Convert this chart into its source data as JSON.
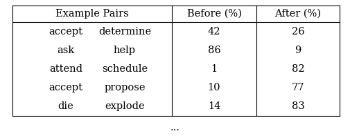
{
  "col1": [
    "accept",
    "ask",
    "attend",
    "accept",
    "die"
  ],
  "col2": [
    "determine",
    "help",
    "schedule",
    "propose",
    "explode"
  ],
  "before": [
    "42",
    "86",
    "1",
    "10",
    "14"
  ],
  "after": [
    "26",
    "9",
    "82",
    "77",
    "83"
  ],
  "header_col1": "Example Pairs",
  "header_col2": "Before (%)",
  "header_col3": "After (%)",
  "ellipsis": "...",
  "bg_color": "#ffffff",
  "text_color": "#000000",
  "line_color": "#000000",
  "font_size": 10.5,
  "header_font_size": 10.5
}
